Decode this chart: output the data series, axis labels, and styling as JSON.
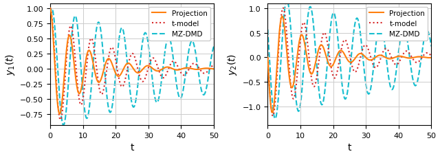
{
  "xlabel": "t",
  "ylabel1": "y_1(t)",
  "ylabel2": "y_2(t)",
  "xlim": [
    0,
    50
  ],
  "yticks1": [
    -0.75,
    -0.5,
    -0.25,
    0.0,
    0.25,
    0.5,
    0.75,
    1.0
  ],
  "yticks2": [
    -1.0,
    -0.5,
    0.0,
    0.5,
    1.0
  ],
  "xticks": [
    0,
    10,
    20,
    30,
    40,
    50
  ],
  "projection_color": "#ff7f0e",
  "tmodel_color": "#d62728",
  "mzdmd_color": "#17becf",
  "projection_lw": 1.5,
  "tmodel_lw": 1.5,
  "mzdmd_lw": 1.5,
  "legend_labels": [
    "Projection",
    "t-model",
    "MZ-DMD"
  ],
  "figsize": [
    6.4,
    2.28
  ],
  "dpi": 100,
  "omega_proj": 1.05,
  "decay_proj": 0.1,
  "omega_tmodel": 1.0,
  "decay_tmodel": 0.055,
  "omega_mzdmd": 0.88,
  "decay_mzdmd": 0.018
}
